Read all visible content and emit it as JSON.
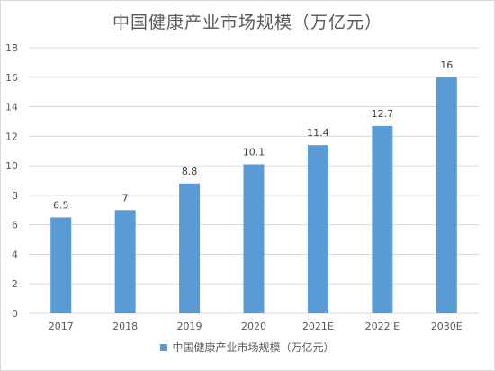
{
  "chart_data": {
    "type": "bar",
    "title": "中国健康产业市场规模（万亿元）",
    "categories": [
      "2017",
      "2018",
      "2019",
      "2020",
      "2021E",
      "2022 E",
      "2030E"
    ],
    "series": [
      {
        "name": "中国健康产业市场规模（万亿元）",
        "values": [
          6.5,
          7,
          8.8,
          10.1,
          11.4,
          12.7,
          16
        ],
        "labels": [
          "6.5",
          "7",
          "8.8",
          "10.1",
          "11.4",
          "12.7",
          "16"
        ]
      }
    ],
    "xlabel": "",
    "ylabel": "",
    "ylim": [
      0,
      18
    ],
    "yticks": [
      "0",
      "2",
      "4",
      "6",
      "8",
      "10",
      "12",
      "14",
      "16",
      "18"
    ],
    "grid": true,
    "legend_position": "bottom",
    "bar_color": "#5b9bd5",
    "grid_color": "#d9d9d9"
  }
}
